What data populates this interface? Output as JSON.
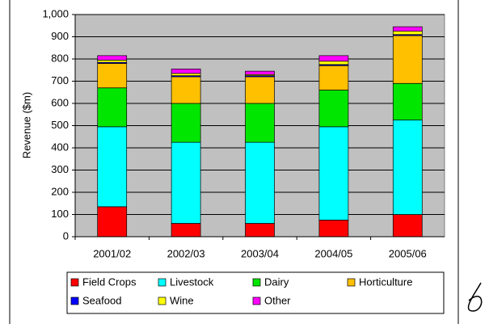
{
  "chart_data": {
    "type": "stacked-bar",
    "y_label": "Revenue ($m)",
    "categories": [
      "2001/02",
      "2002/03",
      "2003/04",
      "2004/05",
      "2005/06"
    ],
    "series": [
      {
        "name": "Field Crops",
        "color": "#ff0000",
        "values": [
          135,
          60,
          60,
          75,
          100
        ]
      },
      {
        "name": "Livestock",
        "color": "#00ffff",
        "values": [
          360,
          365,
          365,
          420,
          425
        ]
      },
      {
        "name": "Dairy",
        "color": "#00e600",
        "values": [
          175,
          175,
          175,
          165,
          165
        ]
      },
      {
        "name": "Horticulture",
        "color": "#ffc000",
        "values": [
          110,
          120,
          120,
          110,
          215
        ]
      },
      {
        "name": "Seafood",
        "color": "#0000ff",
        "values": [
          5,
          5,
          5,
          5,
          5
        ]
      },
      {
        "name": "Wine",
        "color": "#ffff00",
        "values": [
          10,
          10,
          5,
          15,
          15
        ]
      },
      {
        "name": "Other",
        "color": "#ff00ff",
        "values": [
          20,
          20,
          15,
          25,
          20
        ]
      }
    ],
    "ylim": [
      0,
      1000
    ],
    "yticks": [
      0,
      100,
      200,
      300,
      400,
      500,
      600,
      700,
      800,
      900,
      {
        "value": 1000,
        "label": "1,000"
      }
    ],
    "grid": true
  }
}
